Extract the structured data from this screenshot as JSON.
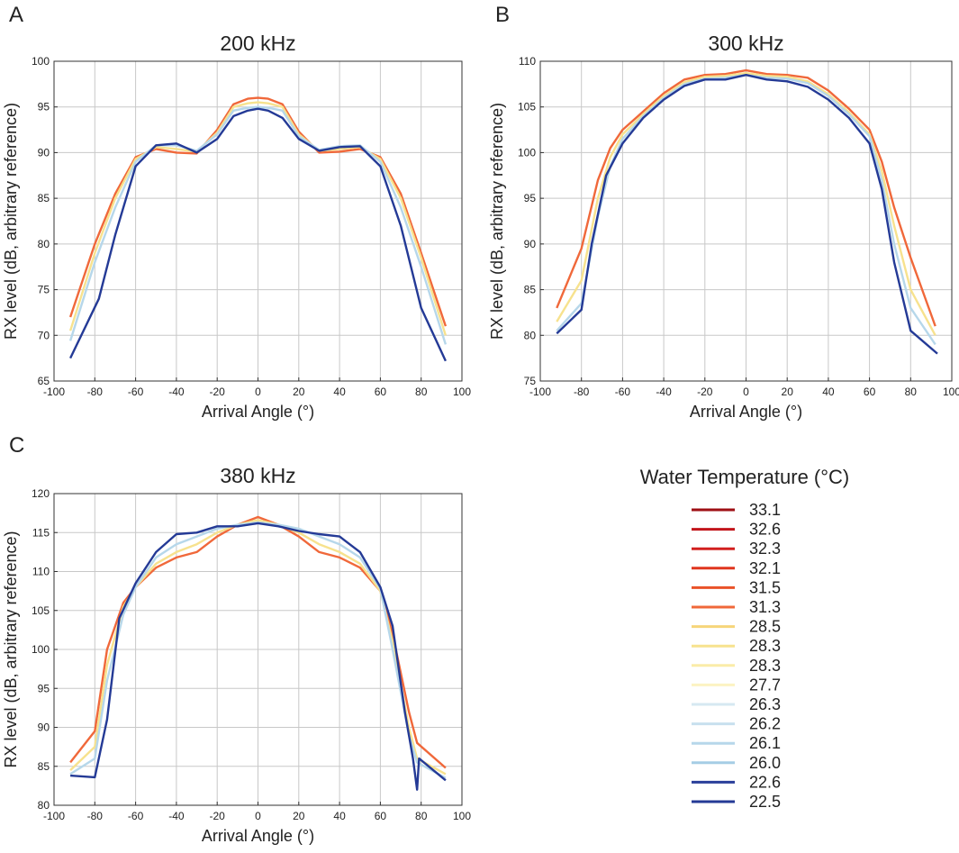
{
  "legend": {
    "title": "Water Temperature (°C)",
    "entries": [
      {
        "label": "33.1",
        "color": "#9e0f14"
      },
      {
        "label": "32.6",
        "color": "#c2151b"
      },
      {
        "label": "32.3",
        "color": "#d2201f"
      },
      {
        "label": "32.1",
        "color": "#e0361f"
      },
      {
        "label": "31.5",
        "color": "#ea5228"
      },
      {
        "label": "31.3",
        "color": "#f0683a"
      },
      {
        "label": "28.5",
        "color": "#f6d57a"
      },
      {
        "label": "28.3",
        "color": "#f7e28e"
      },
      {
        "label": "28.3",
        "color": "#faeca8"
      },
      {
        "label": "27.7",
        "color": "#fcf3c3"
      },
      {
        "label": "26.3",
        "color": "#d6e8f2"
      },
      {
        "label": "26.2",
        "color": "#c8e0ee"
      },
      {
        "label": "26.1",
        "color": "#b6d7ea"
      },
      {
        "label": "26.0",
        "color": "#a5cde5"
      },
      {
        "label": "22.6",
        "color": "#2a3f9a"
      },
      {
        "label": "22.5",
        "color": "#243a96"
      }
    ]
  },
  "chart_data": [
    {
      "type": "line",
      "panel": "A",
      "title": "200 kHz",
      "xlabel": "Arrival Angle (°)",
      "ylabel": "RX level (dB, arbitrary reference)",
      "xlim": [
        -100,
        100
      ],
      "ylim": [
        65,
        100
      ],
      "xticks": [
        -100,
        -80,
        -60,
        -40,
        -20,
        0,
        20,
        40,
        60,
        80,
        100
      ],
      "yticks": [
        65,
        70,
        75,
        80,
        85,
        90,
        95,
        100
      ],
      "grid": true,
      "series": [
        {
          "name": "31.3",
          "color": "#f0683a",
          "x": [
            -92,
            -80,
            -70,
            -60,
            -50,
            -40,
            -30,
            -20,
            -12,
            -5,
            0,
            5,
            12,
            20,
            30,
            40,
            50,
            60,
            70,
            80,
            92
          ],
          "y": [
            72,
            80,
            85.5,
            89.5,
            90.4,
            90.0,
            89.9,
            92.5,
            95.3,
            95.9,
            96.0,
            95.9,
            95.3,
            92.3,
            90.0,
            90.1,
            90.4,
            89.5,
            85.5,
            79,
            71
          ]
        },
        {
          "name": "28.3",
          "color": "#f7e28e",
          "x": [
            -92,
            -80,
            -70,
            -60,
            -50,
            -40,
            -30,
            -20,
            -12,
            -5,
            0,
            5,
            12,
            20,
            30,
            40,
            50,
            60,
            70,
            80,
            92
          ],
          "y": [
            70.5,
            79,
            85,
            89.3,
            90.6,
            90.4,
            90.1,
            92.2,
            95.0,
            95.4,
            95.5,
            95.4,
            95.0,
            92.0,
            90.2,
            90.4,
            90.6,
            89.3,
            85,
            78.5,
            70
          ]
        },
        {
          "name": "26.1",
          "color": "#b6d7ea",
          "x": [
            -92,
            -80,
            -70,
            -60,
            -50,
            -40,
            -30,
            -20,
            -12,
            -5,
            0,
            5,
            12,
            20,
            30,
            40,
            50,
            60,
            70,
            80,
            92
          ],
          "y": [
            69.4,
            78,
            84,
            89,
            90.8,
            90.8,
            90.2,
            92,
            94.6,
            94.9,
            95.0,
            94.9,
            94.6,
            91.8,
            90.3,
            90.7,
            90.8,
            89,
            84,
            77.5,
            69
          ]
        },
        {
          "name": "22.5",
          "color": "#243a96",
          "x": [
            -92,
            -78,
            -70,
            -60,
            -50,
            -40,
            -30,
            -20,
            -12,
            -5,
            0,
            5,
            12,
            20,
            30,
            40,
            50,
            60,
            70,
            80,
            92
          ],
          "y": [
            67.5,
            74,
            81,
            88.5,
            90.8,
            91.0,
            90.0,
            91.5,
            94.0,
            94.6,
            94.8,
            94.6,
            93.8,
            91.5,
            90.2,
            90.6,
            90.7,
            88.5,
            82,
            73,
            67.2
          ]
        }
      ]
    },
    {
      "type": "line",
      "panel": "B",
      "title": "300 kHz",
      "xlabel": "Arrival Angle (°)",
      "ylabel": "RX level (dB, arbitrary reference)",
      "xlim": [
        -100,
        100
      ],
      "ylim": [
        75,
        110
      ],
      "xticks": [
        -100,
        -80,
        -60,
        -40,
        -20,
        0,
        20,
        40,
        60,
        80,
        100
      ],
      "yticks": [
        75,
        80,
        85,
        90,
        95,
        100,
        105,
        110
      ],
      "grid": true,
      "series": [
        {
          "name": "31.3",
          "color": "#f0683a",
          "x": [
            -92,
            -80,
            -72,
            -66,
            -60,
            -50,
            -40,
            -30,
            -20,
            -10,
            0,
            10,
            20,
            30,
            40,
            50,
            60,
            66,
            72,
            80,
            92
          ],
          "y": [
            83,
            89.5,
            97,
            100.5,
            102.5,
            104.5,
            106.5,
            108,
            108.5,
            108.6,
            109,
            108.6,
            108.5,
            108.2,
            106.8,
            104.8,
            102.5,
            99,
            94,
            88.5,
            81
          ]
        },
        {
          "name": "28.3",
          "color": "#f7e28e",
          "x": [
            -92,
            -80,
            -72,
            -66,
            -60,
            -50,
            -40,
            -30,
            -20,
            -10,
            0,
            10,
            20,
            30,
            40,
            50,
            60,
            66,
            72,
            80,
            92
          ],
          "y": [
            81.5,
            86,
            95,
            99.5,
            102,
            104.2,
            106.2,
            107.7,
            108.3,
            108.4,
            108.7,
            108.4,
            108.3,
            107.8,
            106.4,
            104.4,
            102,
            98,
            92,
            85,
            80
          ]
        },
        {
          "name": "26.1",
          "color": "#b6d7ea",
          "x": [
            -92,
            -80,
            -72,
            -66,
            -60,
            -50,
            -40,
            -30,
            -20,
            -10,
            0,
            10,
            20,
            30,
            40,
            50,
            60,
            66,
            72,
            80,
            92
          ],
          "y": [
            80.5,
            83.5,
            93,
            98.5,
            101.5,
            104,
            106,
            107.5,
            108.1,
            108.2,
            108.5,
            108.2,
            108.1,
            107.6,
            106.2,
            104.2,
            101.8,
            97,
            90,
            83,
            79
          ]
        },
        {
          "name": "22.5",
          "color": "#243a96",
          "x": [
            -92,
            -80,
            -75,
            -68,
            -60,
            -50,
            -40,
            -30,
            -20,
            -10,
            0,
            10,
            20,
            30,
            40,
            50,
            60,
            66,
            72,
            80,
            93
          ],
          "y": [
            80.2,
            82.8,
            90,
            97.5,
            101,
            103.8,
            105.8,
            107.3,
            108,
            108,
            108.5,
            108,
            107.8,
            107.2,
            105.8,
            103.8,
            101,
            96,
            88,
            80.5,
            78
          ]
        }
      ]
    },
    {
      "type": "line",
      "panel": "C",
      "title": "380 kHz",
      "xlabel": "Arrival Angle (°)",
      "ylabel": "RX level (dB, arbitrary reference)",
      "xlim": [
        -100,
        100
      ],
      "ylim": [
        80,
        120
      ],
      "xticks": [
        -100,
        -80,
        -60,
        -40,
        -20,
        0,
        20,
        40,
        60,
        80,
        100
      ],
      "yticks": [
        80,
        85,
        90,
        95,
        100,
        105,
        110,
        115,
        120
      ],
      "grid": true,
      "series": [
        {
          "name": "31.3",
          "color": "#f0683a",
          "x": [
            -92,
            -80,
            -74,
            -66,
            -60,
            -50,
            -40,
            -30,
            -20,
            -10,
            0,
            10,
            20,
            30,
            40,
            50,
            60,
            66,
            74,
            78,
            92
          ],
          "y": [
            85.5,
            89.5,
            100,
            106,
            108,
            110.5,
            111.8,
            112.5,
            114.5,
            116,
            117,
            116,
            114.5,
            112.5,
            111.8,
            110.5,
            107.5,
            102,
            92,
            88,
            84.8
          ]
        },
        {
          "name": "28.3",
          "color": "#f7e28e",
          "x": [
            -92,
            -80,
            -74,
            -66,
            -60,
            -50,
            -40,
            -30,
            -20,
            -10,
            0,
            10,
            20,
            30,
            40,
            50,
            60,
            66,
            74,
            78,
            92
          ],
          "y": [
            84.5,
            87.5,
            98,
            105.5,
            108,
            111,
            112.5,
            113.5,
            115,
            116,
            116.6,
            116,
            115,
            113.5,
            112.5,
            111,
            107.5,
            101,
            90,
            86,
            84
          ]
        },
        {
          "name": "26.1",
          "color": "#b6d7ea",
          "x": [
            -92,
            -80,
            -74,
            -66,
            -60,
            -50,
            -40,
            -30,
            -20,
            -10,
            0,
            10,
            20,
            30,
            40,
            50,
            60,
            66,
            74,
            78,
            92
          ],
          "y": [
            84,
            86,
            96,
            104.5,
            108,
            111.8,
            113.5,
            114.5,
            115.5,
            116,
            116.3,
            116,
            115.5,
            114.5,
            113.5,
            111.8,
            107.8,
            100,
            89,
            85.5,
            83.5
          ]
        },
        {
          "name": "22.5",
          "color": "#243a96",
          "x": [
            -92,
            -80,
            -74,
            -68,
            -60,
            -50,
            -40,
            -30,
            -20,
            -10,
            0,
            10,
            20,
            30,
            40,
            50,
            60,
            66,
            72,
            76,
            78,
            79,
            92
          ],
          "y": [
            83.8,
            83.6,
            91,
            104,
            108.5,
            112.5,
            114.8,
            115,
            115.8,
            115.8,
            116.2,
            115.8,
            115.2,
            114.8,
            114.5,
            112.5,
            108,
            103,
            92,
            86,
            82,
            86,
            83.2
          ]
        }
      ]
    }
  ]
}
